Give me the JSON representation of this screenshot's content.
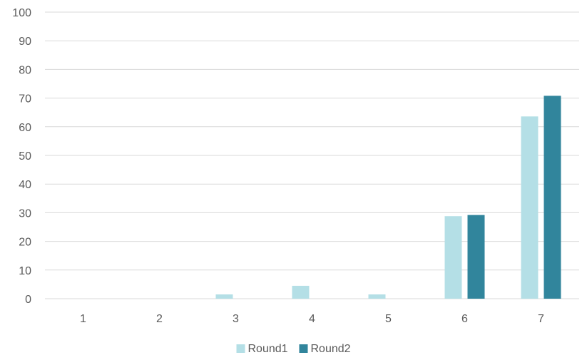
{
  "chart_data": {
    "type": "bar",
    "title": "",
    "xlabel": "",
    "ylabel": "",
    "categories": [
      "1",
      "2",
      "3",
      "4",
      "5",
      "6",
      "7"
    ],
    "series": [
      {
        "name": "Round1",
        "values": [
          0,
          0,
          1.5,
          4.5,
          1.5,
          28.8,
          63.6
        ],
        "color": "#b4dfe6"
      },
      {
        "name": "Round2",
        "values": [
          0,
          0,
          0,
          0,
          0,
          29.2,
          70.8
        ],
        "color": "#31859c"
      }
    ],
    "ylim": [
      0,
      100
    ],
    "yticks": [
      0,
      10,
      20,
      30,
      40,
      50,
      60,
      70,
      80,
      90,
      100
    ],
    "grid": true,
    "legend_position": "bottom"
  }
}
